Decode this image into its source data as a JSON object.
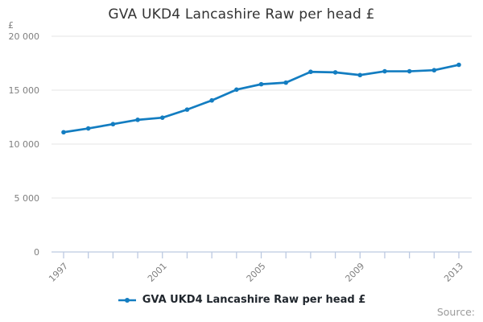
{
  "chart": {
    "title": "GVA UKD4 Lancashire Raw per head £",
    "unit": "£",
    "legend_label": "GVA UKD4 Lancashire Raw per head £",
    "source_label": "Source:",
    "colors": {
      "line": "#137dc1",
      "grid": "#e6e6e6",
      "axis": "#bcc9e1",
      "tick_text": "#7f7f7f",
      "title_text": "#333333",
      "legend_text": "#21272e",
      "source_text": "#9b9b9b"
    }
  },
  "chart_data": {
    "type": "line",
    "title": "GVA UKD4 Lancashire Raw per head £",
    "ylabel": "£",
    "x": [
      1997,
      1998,
      1999,
      2000,
      2001,
      2002,
      2003,
      2004,
      2005,
      2006,
      2007,
      2008,
      2009,
      2010,
      2011,
      2012,
      2013
    ],
    "series": [
      {
        "name": "GVA UKD4 Lancashire Raw per head £",
        "values": [
          11100,
          11450,
          11850,
          12250,
          12450,
          13200,
          14050,
          15050,
          15550,
          15700,
          16700,
          16650,
          16400,
          16750,
          16750,
          16850,
          17350
        ]
      }
    ],
    "ylim": [
      0,
      20000
    ],
    "y_ticks": [
      0,
      5000,
      10000,
      15000,
      20000
    ],
    "y_tick_labels": [
      "0",
      "5 000",
      "10 000",
      "15 000",
      "20 000"
    ],
    "x_labeled_ticks": [
      1997,
      2001,
      2005,
      2009,
      2013
    ],
    "grid": "horizontal",
    "legend_position": "bottom",
    "marker": "dot"
  }
}
